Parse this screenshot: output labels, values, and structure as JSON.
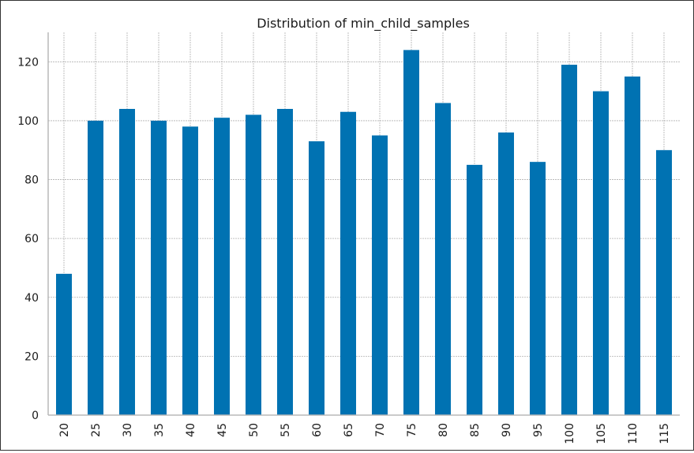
{
  "chart_data": {
    "type": "bar",
    "title": "Distribution of min_child_samples",
    "xlabel": "",
    "ylabel": "",
    "categories": [
      "20",
      "25",
      "30",
      "35",
      "40",
      "45",
      "50",
      "55",
      "60",
      "65",
      "70",
      "75",
      "80",
      "85",
      "90",
      "95",
      "100",
      "105",
      "110",
      "115"
    ],
    "values": [
      48,
      100,
      104,
      100,
      98,
      101,
      102,
      104,
      93,
      103,
      95,
      124,
      106,
      85,
      96,
      86,
      119,
      110,
      115,
      90
    ],
    "ylim": [
      0,
      130
    ],
    "yticks": [
      0,
      20,
      40,
      60,
      80,
      100,
      120
    ],
    "grid": true,
    "legend": "none",
    "colors": {
      "bar": "#0072b2",
      "grid": "#b0b0b0",
      "axis": "#b8b8b8"
    }
  }
}
